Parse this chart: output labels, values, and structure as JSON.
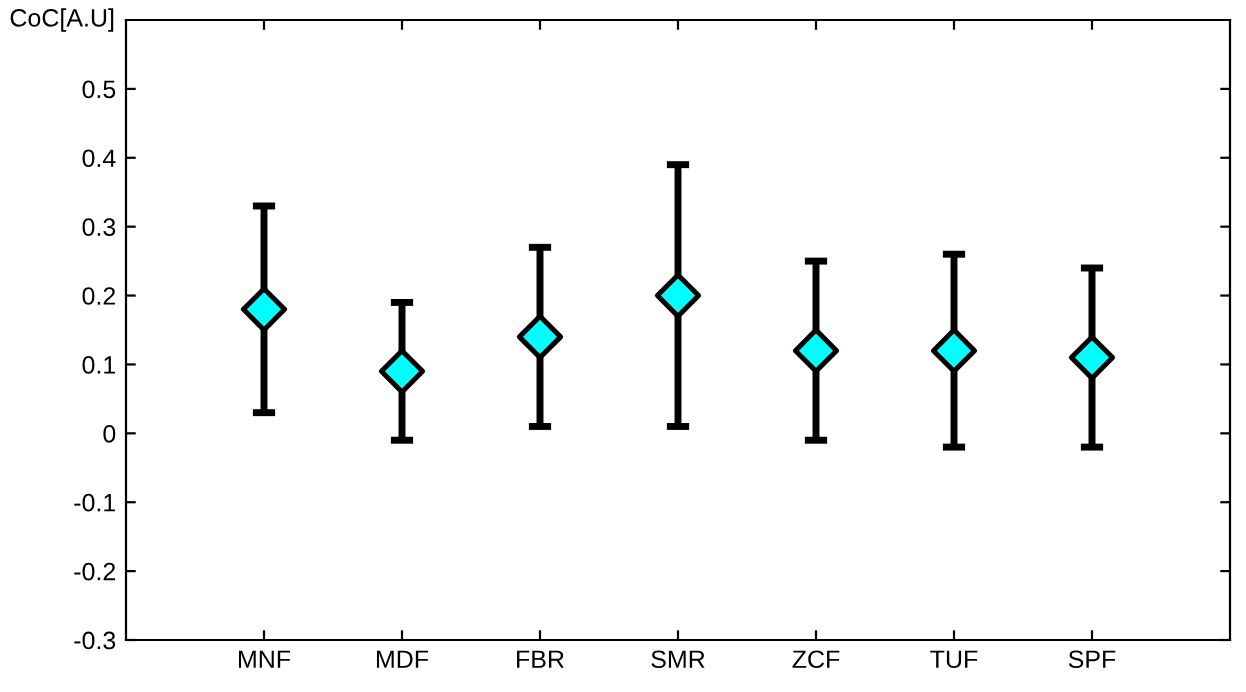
{
  "chart_data": {
    "type": "scatter",
    "ylabel": "CoC[A.U]",
    "categories": [
      "MNF",
      "MDF",
      "FBR",
      "SMR",
      "ZCF",
      "TUF",
      "SPF"
    ],
    "series": [
      {
        "color": "#00ffff",
        "values": [
          0.18,
          0.09,
          0.14,
          0.2,
          0.12,
          0.12,
          0.11
        ],
        "errors": [
          [
            0.03,
            0.33
          ],
          [
            -0.01,
            0.19
          ],
          [
            0.01,
            0.27
          ],
          [
            0.01,
            0.39
          ],
          [
            -0.01,
            0.25
          ],
          [
            -0.02,
            0.26
          ],
          [
            -0.02,
            0.24
          ]
        ]
      }
    ],
    "marker": "diamond",
    "ylim": [
      -0.3,
      0.6
    ],
    "yticks": [
      -0.3,
      -0.2,
      -0.1,
      0,
      0.1,
      0.2,
      0.3,
      0.4,
      0.5
    ],
    "grid": false,
    "legend": false
  }
}
